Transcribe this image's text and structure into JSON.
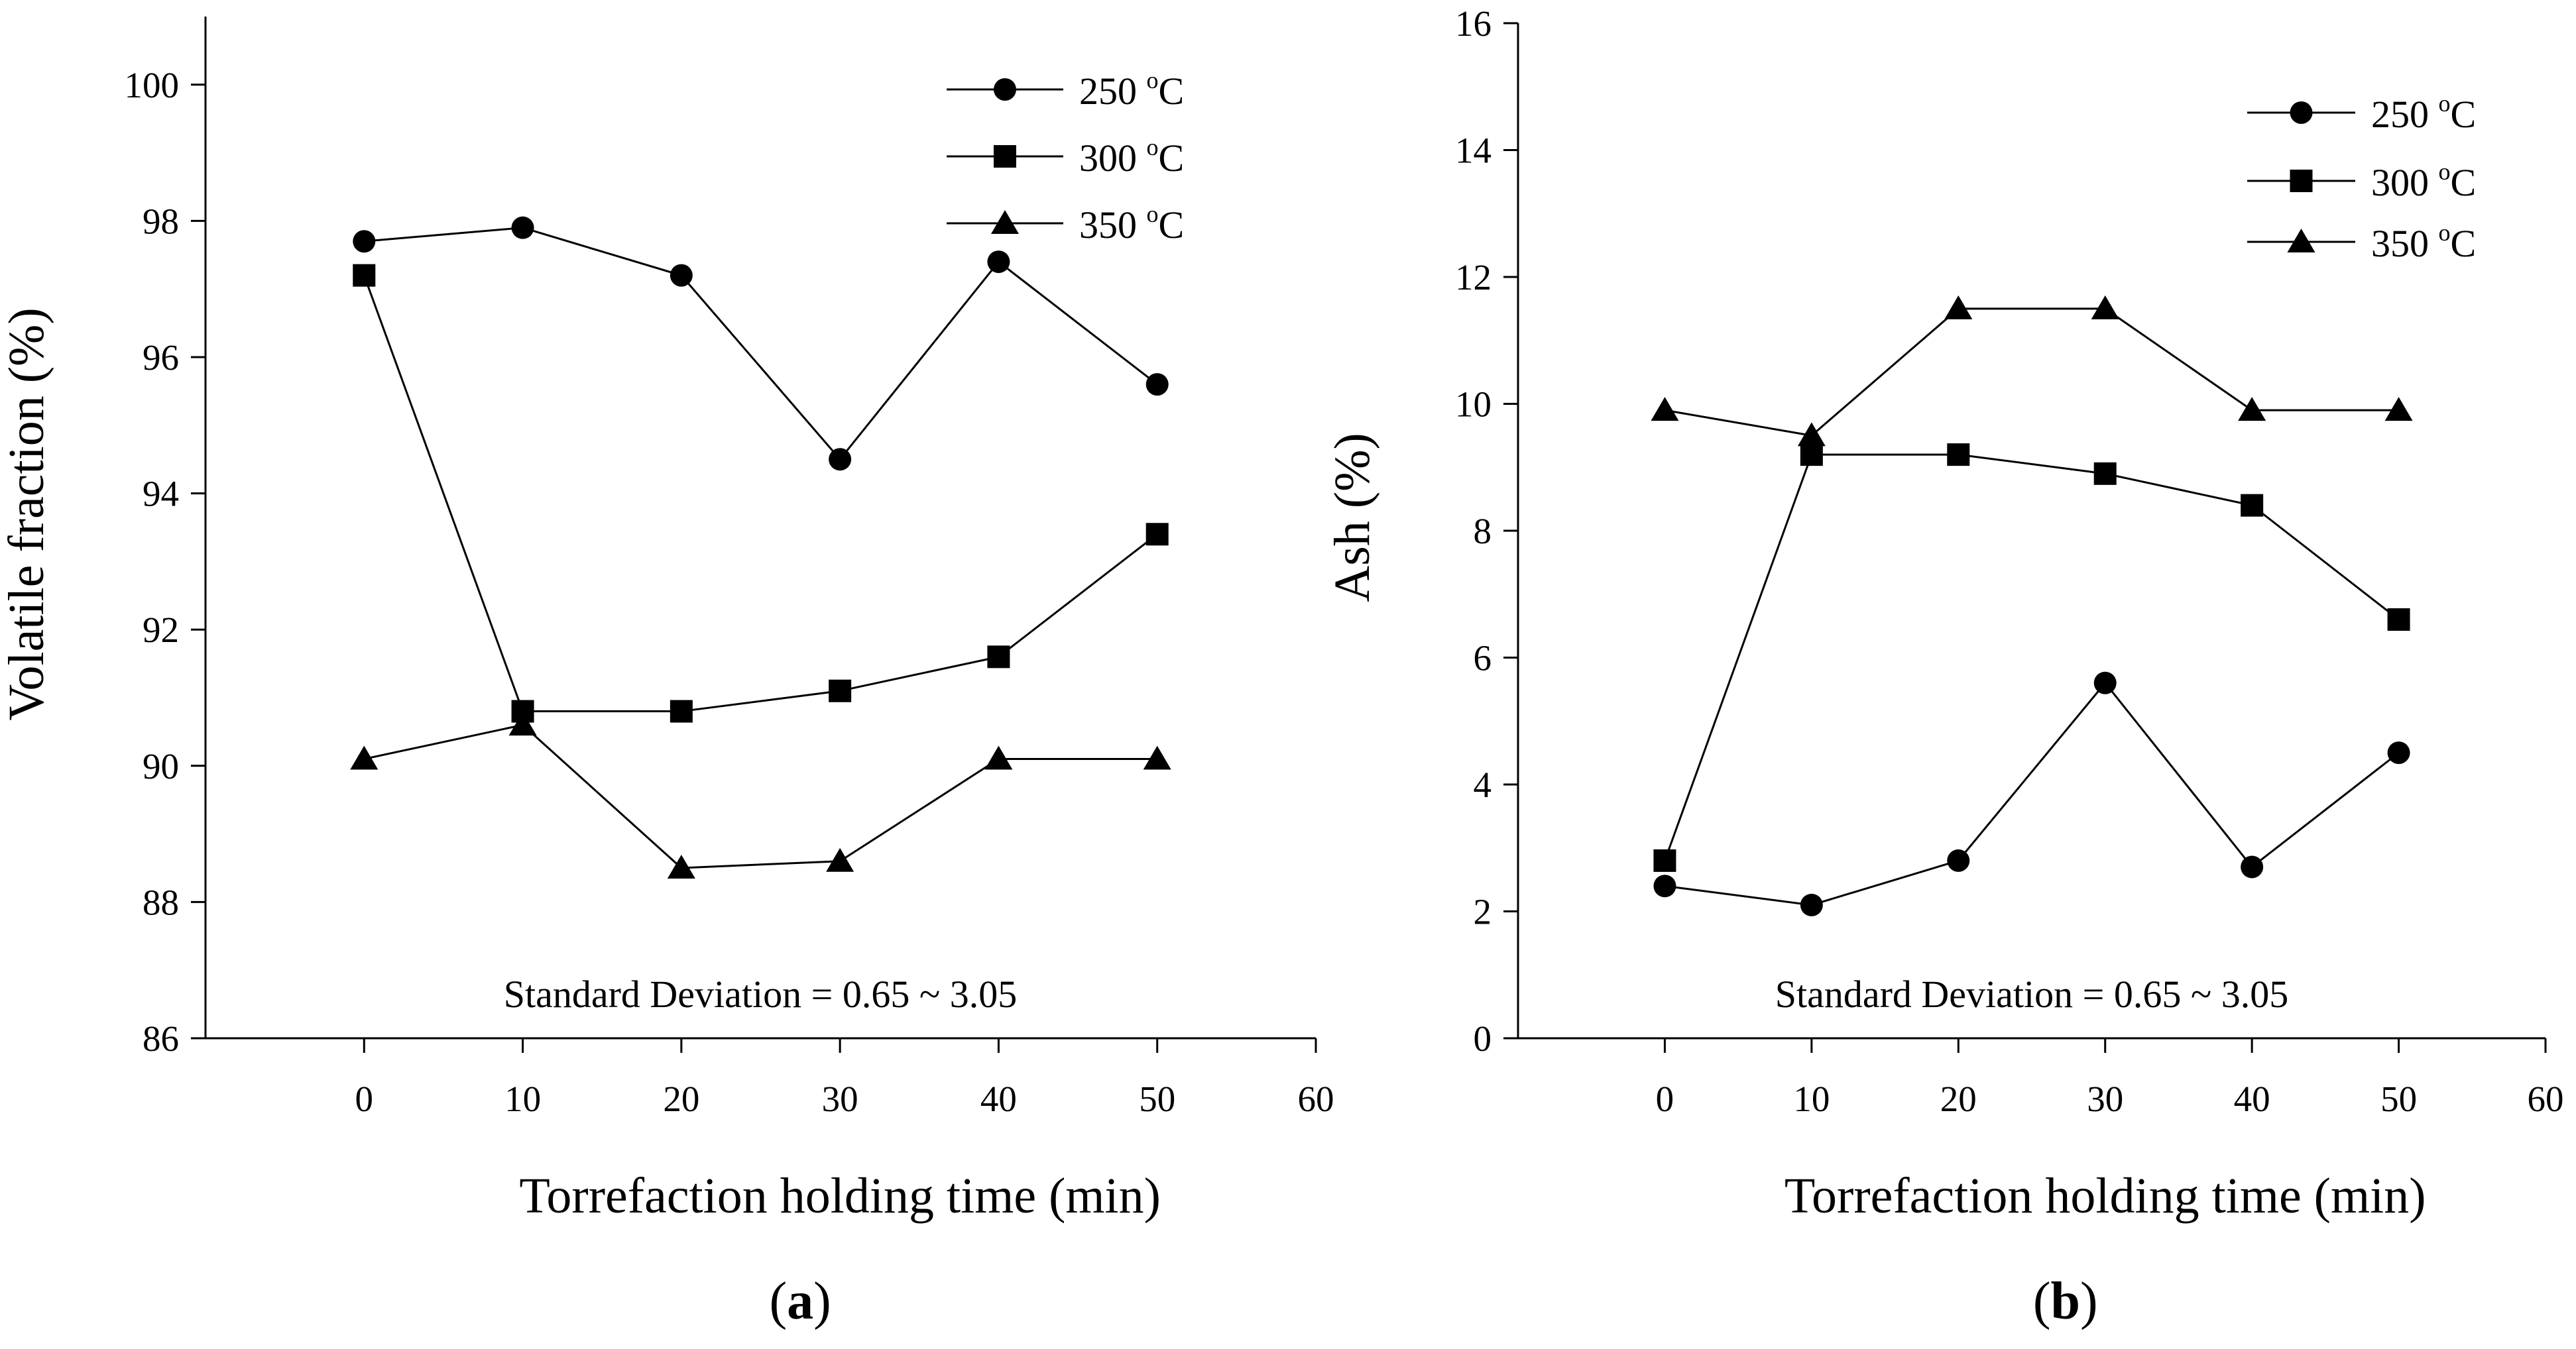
{
  "figure": {
    "panels": [
      {
        "id": "a",
        "label_open": "(",
        "label": "a",
        "label_close": ")"
      },
      {
        "id": "b",
        "label_open": "(",
        "label": "b",
        "label_close": ")"
      }
    ]
  },
  "chart_data": [
    {
      "type": "line",
      "panel": "a",
      "xlabel": "Torrefaction holding time (min)",
      "ylabel": "Volatile fraction (%)",
      "xlim": [
        -10,
        60
      ],
      "ylim": [
        86,
        101
      ],
      "xticks": [
        0,
        10,
        20,
        30,
        40,
        50,
        60
      ],
      "yticks": [
        86,
        88,
        90,
        92,
        94,
        96,
        98,
        100
      ],
      "x": [
        0,
        10,
        20,
        30,
        40,
        50
      ],
      "series": [
        {
          "name": "250 °C",
          "temp": "250",
          "unit": "C",
          "marker": "circle",
          "values": [
            97.7,
            97.9,
            97.2,
            94.5,
            97.4,
            95.6
          ]
        },
        {
          "name": "300 °C",
          "temp": "300",
          "unit": "C",
          "marker": "square",
          "values": [
            97.2,
            90.8,
            90.8,
            91.1,
            91.6,
            93.4
          ]
        },
        {
          "name": "350 °C",
          "temp": "350",
          "unit": "C",
          "marker": "triangle",
          "values": [
            90.1,
            90.6,
            88.5,
            88.6,
            90.1,
            90.1
          ]
        }
      ],
      "annotation": "Standard Deviation = 0.65 ~ 3.05",
      "legend": "top-right",
      "color": "#000000"
    },
    {
      "type": "line",
      "panel": "b",
      "xlabel": "Torrefaction holding time (min)",
      "ylabel": "Ash (%)",
      "xlim": [
        -10,
        60
      ],
      "ylim": [
        0,
        16
      ],
      "xticks": [
        0,
        10,
        20,
        30,
        40,
        50,
        60
      ],
      "yticks": [
        0,
        2,
        4,
        6,
        8,
        10,
        12,
        14,
        16
      ],
      "x": [
        0,
        10,
        20,
        30,
        40,
        50
      ],
      "series": [
        {
          "name": "250 °C",
          "temp": "250",
          "unit": "C",
          "marker": "circle",
          "values": [
            2.4,
            2.1,
            2.8,
            5.6,
            2.7,
            4.5
          ]
        },
        {
          "name": "300 °C",
          "temp": "300",
          "unit": "C",
          "marker": "square",
          "values": [
            2.8,
            9.2,
            9.2,
            8.9,
            8.4,
            6.6
          ]
        },
        {
          "name": "350 °C",
          "temp": "350",
          "unit": "C",
          "marker": "triangle",
          "values": [
            9.9,
            9.5,
            11.5,
            11.5,
            9.9,
            9.9
          ]
        }
      ],
      "annotation": "Standard Deviation = 0.65 ~ 3.05",
      "legend": "top-right",
      "color": "#000000"
    }
  ]
}
